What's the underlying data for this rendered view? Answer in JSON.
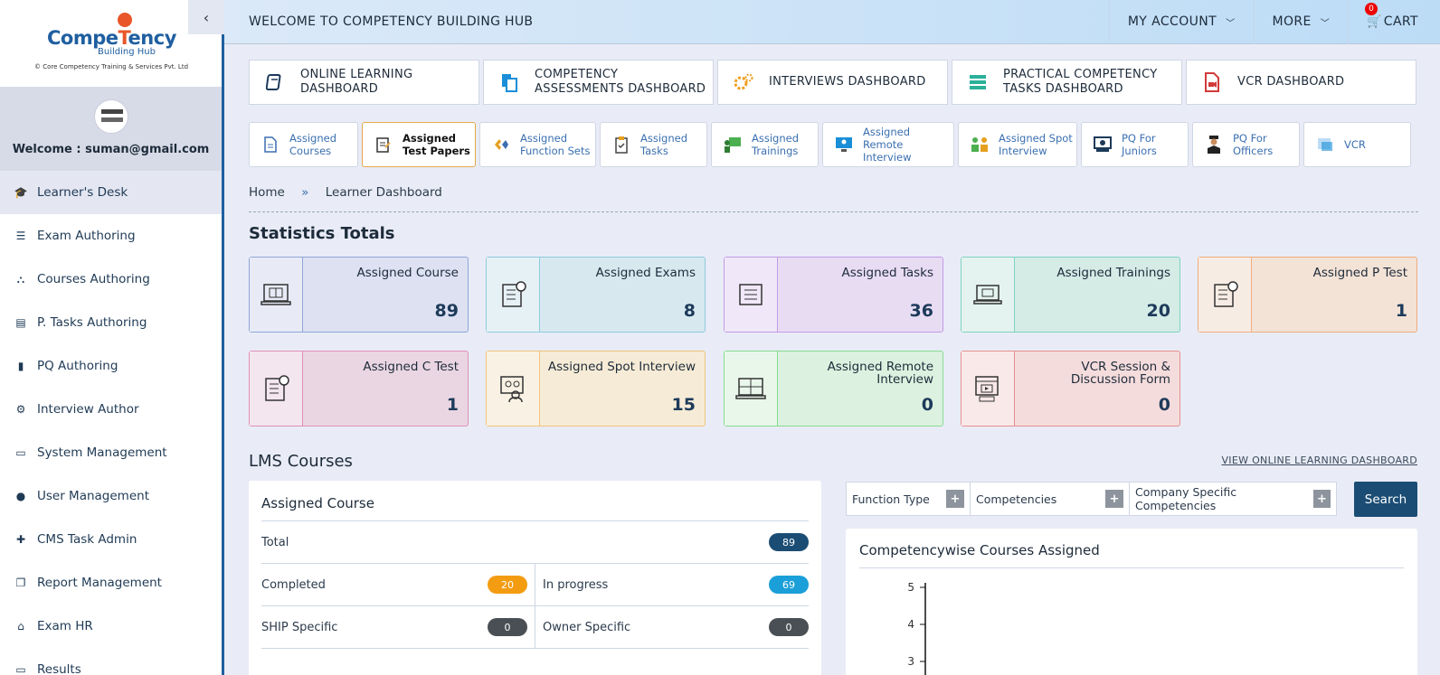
{
  "logo": {
    "name_main_a": "Compe",
    "name_main_b": "T",
    "name_main_c": "ency",
    "name_sub": "Building Hub",
    "caption": "© Core Competency Training & Services Pvt. Ltd"
  },
  "profile": {
    "welcome": "Welcome : suman@gmail.com"
  },
  "sidebar": {
    "items": [
      {
        "label": "Learner's Desk",
        "icon": "graduation-cap-icon"
      },
      {
        "label": "Exam Authoring",
        "icon": "list-icon"
      },
      {
        "label": "Courses Authoring",
        "icon": "sitemap-icon"
      },
      {
        "label": "P. Tasks Authoring",
        "icon": "tasks-list-icon"
      },
      {
        "label": "PQ Authoring",
        "icon": "book-icon"
      },
      {
        "label": "Interview Author",
        "icon": "cogs-icon"
      },
      {
        "label": "System Management",
        "icon": "monitor-icon"
      },
      {
        "label": "User Management",
        "icon": "user-icon"
      },
      {
        "label": "CMS Task Admin",
        "icon": "user-plus-icon"
      },
      {
        "label": "Report Management",
        "icon": "copy-icon"
      },
      {
        "label": "Exam HR",
        "icon": "bank-icon"
      },
      {
        "label": "Results",
        "icon": "monitor-icon"
      }
    ]
  },
  "header": {
    "title": "WELCOME TO COMPETENCY BUILDING HUB",
    "my_account": "MY ACCOUNT",
    "more": "MORE",
    "cart": "CART",
    "cart_count": "0"
  },
  "dashboards": [
    {
      "label": "ONLINE LEARNING DASHBOARD",
      "icon": "book-icon",
      "color": "#1d3a5a"
    },
    {
      "label": "COMPETENCY ASSESSMENTS DASHBOARD",
      "icon": "document-icon",
      "color": "#1a8fd8"
    },
    {
      "label": "INTERVIEWS DASHBOARD",
      "icon": "gears-icon",
      "color": "#f0a020"
    },
    {
      "label": "PRACTICAL COMPETENCY TASKS DASHBOARD",
      "icon": "server-icon",
      "color": "#2bb09a"
    },
    {
      "label": "VCR DASHBOARD",
      "icon": "video-file-icon",
      "color": "#d23a3a"
    }
  ],
  "tabs": [
    {
      "label_a": "Assigned",
      "label_b": "Courses",
      "icon": "doc-icon"
    },
    {
      "label_a": "Assigned",
      "label_b": "Test Papers",
      "icon": "test-paper-icon"
    },
    {
      "label_a": "Assigned",
      "label_b": "Function Sets",
      "icon": "function-icon"
    },
    {
      "label_a": "Assigned",
      "label_b": "Tasks",
      "icon": "clipboard-icon"
    },
    {
      "label_a": "Assigned",
      "label_b": "Trainings",
      "icon": "training-icon"
    },
    {
      "label_a": "Assigned",
      "label_b": "Remote Interview",
      "icon": "remote-interview-icon"
    },
    {
      "label_a": "Assigned Spot",
      "label_b": "Interview",
      "icon": "spot-interview-icon"
    },
    {
      "label_a": "PQ For",
      "label_b": "Juniors",
      "icon": "juniors-icon"
    },
    {
      "label_a": "PQ For",
      "label_b": "Officers",
      "icon": "officer-icon"
    },
    {
      "label_a": "VCR",
      "label_b": "",
      "icon": "vcr-icon"
    }
  ],
  "breadcrumb": {
    "home": "Home",
    "sep": "»",
    "current": "Learner Dashboard"
  },
  "stats": {
    "heading": "Statistics Totals",
    "cards": [
      {
        "title": "Assigned Course",
        "value": "89",
        "icon": "laptop-book-icon"
      },
      {
        "title": "Assigned Exams",
        "value": "8",
        "icon": "exam-sheet-icon"
      },
      {
        "title": "Assigned Tasks",
        "value": "36",
        "icon": "task-list-icon"
      },
      {
        "title": "Assigned Trainings",
        "value": "20",
        "icon": "training-laptop-icon"
      },
      {
        "title": "Assigned P Test",
        "value": "1",
        "icon": "p-test-icon"
      },
      {
        "title": "Assigned C Test",
        "value": "1",
        "icon": "c-test-icon"
      },
      {
        "title": "Assigned Spot Interview",
        "value": "15",
        "icon": "spot-interview-icon"
      },
      {
        "title": "Assigned Remote Interview",
        "value": "0",
        "icon": "remote-interview-icon"
      },
      {
        "title": "VCR Session & Discussion Form",
        "value": "0",
        "icon": "video-session-icon"
      }
    ]
  },
  "lms": {
    "heading": "LMS Courses",
    "view_link": "VIEW ONLINE LEARNING DASHBOARD",
    "panel_title": "Assigned Course",
    "total_label": "Total",
    "total_value": "89",
    "completed_label": "Completed",
    "completed_value": "20",
    "inprogress_label": "In progress",
    "inprogress_value": "69",
    "ship_label": "SHIP Specific",
    "ship_value": "0",
    "owner_label": "Owner Specific",
    "owner_value": "0"
  },
  "filters": {
    "function_type": "Function Type",
    "competencies": "Competencies",
    "company_specific": "Company Specific Competencies",
    "search": "Search"
  },
  "chart_data": {
    "type": "bar",
    "title": "Competencywise Courses Assigned",
    "categories": [],
    "values": [],
    "ylim": [
      0,
      5
    ],
    "y_ticks": [
      "5",
      "4",
      "3"
    ]
  }
}
